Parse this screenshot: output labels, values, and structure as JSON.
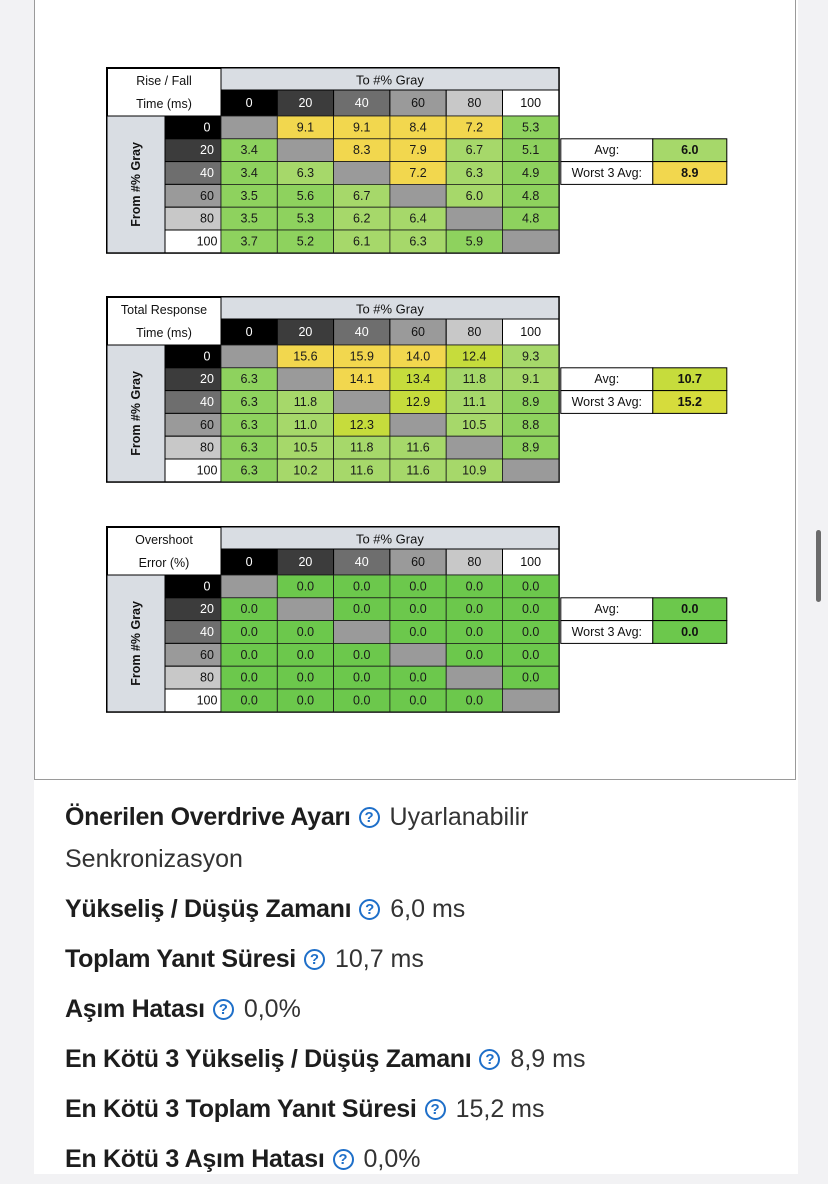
{
  "colors": {
    "green": "#7ccd5a",
    "yellow_green": "#c6dc3c",
    "yellow": "#f2d74e",
    "diag": "#9a9a9a",
    "link_blue": "#1e6fc9"
  },
  "tables": [
    {
      "corner_line1": "Rise / Fall",
      "corner_line2": "Time (ms)",
      "col_title": "To #% Gray",
      "row_title": "From #% Gray",
      "levels": [
        "0",
        "20",
        "40",
        "60",
        "80",
        "100"
      ],
      "cells": [
        [
          "",
          "9.1",
          "9.1",
          "8.4",
          "7.2",
          "5.3"
        ],
        [
          "3.4",
          "",
          "8.3",
          "7.9",
          "6.7",
          "5.1"
        ],
        [
          "3.4",
          "6.3",
          "",
          "7.2",
          "6.3",
          "4.9"
        ],
        [
          "3.5",
          "5.6",
          "6.7",
          "",
          "6.0",
          "4.8"
        ],
        [
          "3.5",
          "5.3",
          "6.2",
          "6.4",
          "",
          "4.8"
        ],
        [
          "3.7",
          "5.2",
          "6.1",
          "6.3",
          "5.9",
          ""
        ]
      ],
      "avg_label": "Avg:",
      "avg_value": "6.0",
      "worst_label": "Worst 3 Avg:",
      "worst_value": "8.9",
      "avg_color": "#a6d86a",
      "worst_color": "#f2d74e",
      "mode": "rise"
    },
    {
      "corner_line1": "Total Response",
      "corner_line2": "Time (ms)",
      "col_title": "To #% Gray",
      "row_title": "From #% Gray",
      "levels": [
        "0",
        "20",
        "40",
        "60",
        "80",
        "100"
      ],
      "cells": [
        [
          "",
          "15.6",
          "15.9",
          "14.0",
          "12.4",
          "9.3"
        ],
        [
          "6.3",
          "",
          "14.1",
          "13.4",
          "11.8",
          "9.1"
        ],
        [
          "6.3",
          "11.8",
          "",
          "12.9",
          "11.1",
          "8.9"
        ],
        [
          "6.3",
          "11.0",
          "12.3",
          "",
          "10.5",
          "8.8"
        ],
        [
          "6.3",
          "10.5",
          "11.8",
          "11.6",
          "",
          "8.9"
        ],
        [
          "6.3",
          "10.2",
          "11.6",
          "11.6",
          "10.9",
          ""
        ]
      ],
      "avg_label": "Avg:",
      "avg_value": "10.7",
      "worst_label": "Worst 3 Avg:",
      "worst_value": "15.2",
      "avg_color": "#c6dc3c",
      "worst_color": "#d6dc3c",
      "mode": "total"
    },
    {
      "corner_line1": "Overshoot",
      "corner_line2": "Error (%)",
      "col_title": "To #% Gray",
      "row_title": "From #% Gray",
      "levels": [
        "0",
        "20",
        "40",
        "60",
        "80",
        "100"
      ],
      "cells": [
        [
          "",
          "0.0",
          "0.0",
          "0.0",
          "0.0",
          "0.0"
        ],
        [
          "0.0",
          "",
          "0.0",
          "0.0",
          "0.0",
          "0.0"
        ],
        [
          "0.0",
          "0.0",
          "",
          "0.0",
          "0.0",
          "0.0"
        ],
        [
          "0.0",
          "0.0",
          "0.0",
          "",
          "0.0",
          "0.0"
        ],
        [
          "0.0",
          "0.0",
          "0.0",
          "0.0",
          "",
          "0.0"
        ],
        [
          "0.0",
          "0.0",
          "0.0",
          "0.0",
          "0.0",
          ""
        ]
      ],
      "avg_label": "Avg:",
      "avg_value": "0.0",
      "worst_label": "Worst 3 Avg:",
      "worst_value": "0.0",
      "avg_color": "#6cc84c",
      "worst_color": "#6cc84c",
      "mode": "overshoot"
    }
  ],
  "info": {
    "items": [
      {
        "label": "Önerilen Overdrive Ayarı",
        "value": "Uyarlanabilir Senkronizasyon"
      },
      {
        "label": "Yükseliş / Düşüş Zamanı",
        "value": "6,0 ms"
      },
      {
        "label": "Toplam Yanıt Süresi",
        "value": "10,7 ms"
      },
      {
        "label": "Aşım Hatası",
        "value": "0,0%"
      },
      {
        "label": "En Kötü 3 Yükseliş / Düşüş Zamanı",
        "value": "8,9 ms"
      },
      {
        "label": "En Kötü 3 Toplam Yanıt Süresi",
        "value": "15,2 ms"
      },
      {
        "label": "En Kötü 3 Aşım Hatası",
        "value": "0,0%"
      }
    ],
    "help_glyph": "?"
  }
}
